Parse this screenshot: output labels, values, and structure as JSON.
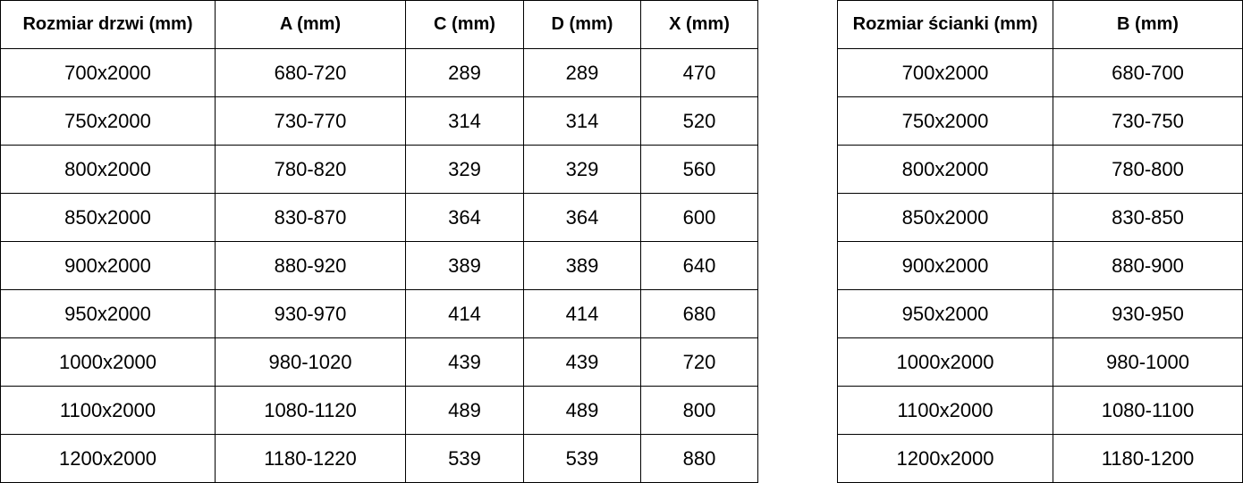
{
  "doors_table": {
    "headers": [
      "Rozmiar drzwi (mm)",
      "A (mm)",
      "C (mm)",
      "D (mm)",
      "X (mm)"
    ],
    "rows": [
      [
        "700x2000",
        "680-720",
        "289",
        "289",
        "470"
      ],
      [
        "750x2000",
        "730-770",
        "314",
        "314",
        "520"
      ],
      [
        "800x2000",
        "780-820",
        "329",
        "329",
        "560"
      ],
      [
        "850x2000",
        "830-870",
        "364",
        "364",
        "600"
      ],
      [
        "900x2000",
        "880-920",
        "389",
        "389",
        "640"
      ],
      [
        "950x2000",
        "930-970",
        "414",
        "414",
        "680"
      ],
      [
        "1000x2000",
        "980-1020",
        "439",
        "439",
        "720"
      ],
      [
        "1100x2000",
        "1080-1120",
        "489",
        "489",
        "800"
      ],
      [
        "1200x2000",
        "1180-1220",
        "539",
        "539",
        "880"
      ]
    ]
  },
  "wall_table": {
    "headers": [
      "Rozmiar ścianki (mm)",
      "B (mm)"
    ],
    "rows": [
      [
        "700x2000",
        "680-700"
      ],
      [
        "750x2000",
        "730-750"
      ],
      [
        "800x2000",
        "780-800"
      ],
      [
        "850x2000",
        "830-850"
      ],
      [
        "900x2000",
        "880-900"
      ],
      [
        "950x2000",
        "930-950"
      ],
      [
        "1000x2000",
        "980-1000"
      ],
      [
        "1100x2000",
        "1080-1100"
      ],
      [
        "1200x2000",
        "1180-1200"
      ]
    ]
  }
}
